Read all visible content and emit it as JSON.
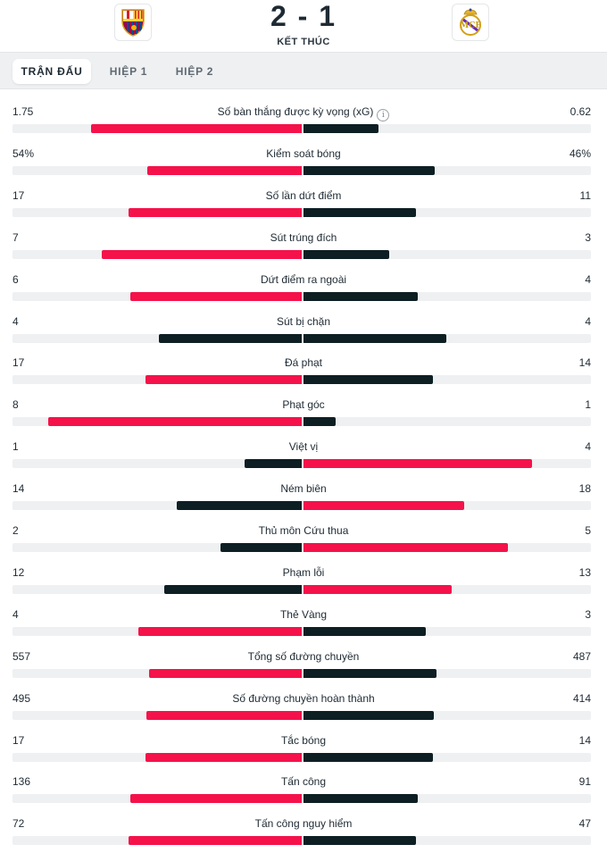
{
  "header": {
    "score": "2 - 1",
    "status": "KẾT THÚC",
    "home_logo_icon": "barcelona-crest-icon",
    "away_logo_icon": "real-madrid-crest-icon"
  },
  "tabs": [
    {
      "label": "TRẬN ĐẤU",
      "active": true
    },
    {
      "label": "HIỆP 1",
      "active": false
    },
    {
      "label": "HIỆP 2",
      "active": false
    }
  ],
  "colors": {
    "leader": "#f5124a",
    "trailer": "#0e1f24",
    "track": "#eef0f2"
  },
  "stats": [
    {
      "label": "Số bàn thắng được kỳ vọng (xG)",
      "home": "1.75",
      "away": "0.62",
      "home_value": 1.75,
      "away_value": 0.62,
      "info_icon": true
    },
    {
      "label": "Kiểm soát bóng",
      "home": "54%",
      "away": "46%",
      "home_value": 54,
      "away_value": 46
    },
    {
      "label": "Số lần dứt điểm",
      "home": "17",
      "away": "11",
      "home_value": 17,
      "away_value": 11
    },
    {
      "label": "Sút trúng đích",
      "home": "7",
      "away": "3",
      "home_value": 7,
      "away_value": 3
    },
    {
      "label": "Dứt điểm ra ngoài",
      "home": "6",
      "away": "4",
      "home_value": 6,
      "away_value": 4
    },
    {
      "label": "Sút bị chặn",
      "home": "4",
      "away": "4",
      "home_value": 4,
      "away_value": 4
    },
    {
      "label": "Đá phạt",
      "home": "17",
      "away": "14",
      "home_value": 17,
      "away_value": 14
    },
    {
      "label": "Phạt góc",
      "home": "8",
      "away": "1",
      "home_value": 8,
      "away_value": 1
    },
    {
      "label": "Việt vị",
      "home": "1",
      "away": "4",
      "home_value": 1,
      "away_value": 4
    },
    {
      "label": "Ném biên",
      "home": "14",
      "away": "18",
      "home_value": 14,
      "away_value": 18
    },
    {
      "label": "Thủ môn Cứu thua",
      "home": "2",
      "away": "5",
      "home_value": 2,
      "away_value": 5
    },
    {
      "label": "Phạm lỗi",
      "home": "12",
      "away": "13",
      "home_value": 12,
      "away_value": 13
    },
    {
      "label": "Thẻ Vàng",
      "home": "4",
      "away": "3",
      "home_value": 4,
      "away_value": 3
    },
    {
      "label": "Tổng số đường chuyền",
      "home": "557",
      "away": "487",
      "home_value": 557,
      "away_value": 487
    },
    {
      "label": "Số đường chuyền hoàn thành",
      "home": "495",
      "away": "414",
      "home_value": 495,
      "away_value": 414
    },
    {
      "label": "Tắc bóng",
      "home": "17",
      "away": "14",
      "home_value": 17,
      "away_value": 14
    },
    {
      "label": "Tấn công",
      "home": "136",
      "away": "91",
      "home_value": 136,
      "away_value": 91
    },
    {
      "label": "Tấn công nguy hiểm",
      "home": "72",
      "away": "47",
      "home_value": 72,
      "away_value": 47
    }
  ]
}
